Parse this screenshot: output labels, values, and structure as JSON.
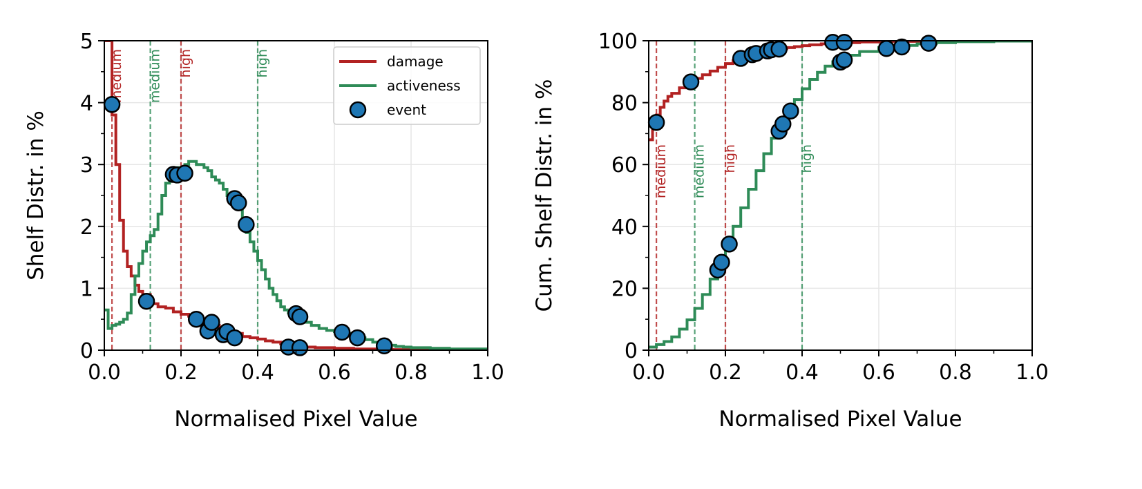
{
  "colors": {
    "damage": "#b22222",
    "activeness": "#2e8b57",
    "event_fill": "#1f77b4",
    "event_edge": "#000000",
    "grid": "#e6e6e6",
    "axes": "#000000"
  },
  "chart_data": [
    {
      "type": "line",
      "subtype": "step",
      "xlabel": "Normalised Pixel Value",
      "ylabel": "Shelf Distr. in %",
      "xlim": [
        0,
        1
      ],
      "ylim": [
        0,
        5
      ],
      "xticks": [
        0.0,
        0.2,
        0.4,
        0.6,
        0.8,
        1.0
      ],
      "xtick_labels": [
        "0.0",
        "0.2",
        "0.4",
        "0.6",
        "0.8",
        "1.0"
      ],
      "yticks": [
        0,
        1,
        2,
        3,
        4,
        5
      ],
      "ytick_labels": [
        "0",
        "1",
        "2",
        "3",
        "4",
        "5"
      ],
      "grid": true,
      "legend": {
        "position": "top-right",
        "entries": [
          {
            "label": "damage",
            "kind": "line",
            "series": "damage"
          },
          {
            "label": "activeness",
            "kind": "line",
            "series": "activeness"
          },
          {
            "label": "event",
            "kind": "marker"
          }
        ]
      },
      "thresholds": [
        {
          "x": 0.02,
          "label": "medium",
          "series": "damage",
          "label_pos": "top"
        },
        {
          "x": 0.12,
          "label": "medium",
          "series": "activeness",
          "label_pos": "top"
        },
        {
          "x": 0.2,
          "label": "high",
          "series": "damage",
          "label_pos": "top"
        },
        {
          "x": 0.4,
          "label": "high",
          "series": "activeness",
          "label_pos": "top"
        }
      ],
      "series": [
        {
          "name": "damage",
          "x": [
            0.0,
            0.01,
            0.02,
            0.03,
            0.04,
            0.05,
            0.06,
            0.07,
            0.08,
            0.09,
            0.1,
            0.12,
            0.14,
            0.16,
            0.18,
            0.2,
            0.22,
            0.24,
            0.26,
            0.28,
            0.3,
            0.32,
            0.34,
            0.36,
            0.38,
            0.4,
            0.42,
            0.44,
            0.46,
            0.48,
            0.5,
            0.52,
            0.55,
            0.6,
            0.65,
            0.7,
            0.75,
            0.8,
            0.85,
            0.9,
            0.95,
            1.0
          ],
          "y": [
            5.0,
            5.0,
            3.8,
            3.0,
            2.1,
            1.6,
            1.35,
            1.2,
            1.05,
            0.95,
            0.9,
            0.75,
            0.7,
            0.68,
            0.62,
            0.58,
            0.55,
            0.5,
            0.45,
            0.4,
            0.35,
            0.3,
            0.27,
            0.22,
            0.2,
            0.18,
            0.15,
            0.13,
            0.1,
            0.08,
            0.06,
            0.05,
            0.04,
            0.03,
            0.02,
            0.02,
            0.01,
            0.01,
            0.01,
            0.0,
            0.0,
            0.0
          ]
        },
        {
          "name": "activeness",
          "x": [
            0.0,
            0.01,
            0.02,
            0.03,
            0.04,
            0.05,
            0.06,
            0.07,
            0.08,
            0.09,
            0.1,
            0.11,
            0.12,
            0.13,
            0.14,
            0.15,
            0.16,
            0.17,
            0.18,
            0.19,
            0.2,
            0.21,
            0.22,
            0.23,
            0.24,
            0.25,
            0.26,
            0.27,
            0.28,
            0.29,
            0.3,
            0.31,
            0.32,
            0.33,
            0.34,
            0.35,
            0.36,
            0.37,
            0.38,
            0.39,
            0.4,
            0.41,
            0.42,
            0.43,
            0.44,
            0.45,
            0.46,
            0.47,
            0.48,
            0.49,
            0.5,
            0.52,
            0.54,
            0.56,
            0.58,
            0.6,
            0.62,
            0.64,
            0.66,
            0.68,
            0.7,
            0.72,
            0.74,
            0.76,
            0.78,
            0.8,
            0.85,
            0.9,
            0.95,
            1.0
          ],
          "y": [
            0.65,
            0.35,
            0.4,
            0.42,
            0.45,
            0.5,
            0.6,
            0.9,
            1.2,
            1.4,
            1.6,
            1.75,
            1.85,
            1.95,
            2.2,
            2.5,
            2.7,
            2.85,
            2.9,
            2.95,
            2.95,
            3.0,
            3.05,
            3.05,
            3.0,
            3.0,
            2.95,
            2.9,
            2.8,
            2.75,
            2.7,
            2.6,
            2.5,
            2.45,
            2.4,
            2.3,
            2.1,
            1.9,
            1.75,
            1.6,
            1.45,
            1.3,
            1.15,
            1.0,
            0.9,
            0.8,
            0.7,
            0.65,
            0.6,
            0.55,
            0.5,
            0.45,
            0.4,
            0.35,
            0.32,
            0.3,
            0.27,
            0.24,
            0.2,
            0.17,
            0.13,
            0.1,
            0.08,
            0.06,
            0.05,
            0.04,
            0.03,
            0.02,
            0.02,
            0.01
          ]
        }
      ],
      "events": [
        {
          "x": 0.02,
          "y": 3.97
        },
        {
          "x": 0.11,
          "y": 0.79
        },
        {
          "x": 0.18,
          "y": 2.84
        },
        {
          "x": 0.19,
          "y": 2.83
        },
        {
          "x": 0.21,
          "y": 2.86
        },
        {
          "x": 0.24,
          "y": 0.5
        },
        {
          "x": 0.27,
          "y": 0.31
        },
        {
          "x": 0.28,
          "y": 0.45
        },
        {
          "x": 0.31,
          "y": 0.25
        },
        {
          "x": 0.32,
          "y": 0.3
        },
        {
          "x": 0.34,
          "y": 2.45
        },
        {
          "x": 0.34,
          "y": 0.2
        },
        {
          "x": 0.35,
          "y": 2.38
        },
        {
          "x": 0.37,
          "y": 2.03
        },
        {
          "x": 0.48,
          "y": 0.05
        },
        {
          "x": 0.5,
          "y": 0.59
        },
        {
          "x": 0.51,
          "y": 0.54
        },
        {
          "x": 0.51,
          "y": 0.04
        },
        {
          "x": 0.62,
          "y": 0.29
        },
        {
          "x": 0.66,
          "y": 0.2
        },
        {
          "x": 0.73,
          "y": 0.07
        }
      ]
    },
    {
      "type": "line",
      "subtype": "step",
      "xlabel": "Normalised Pixel Value",
      "ylabel": "Cum. Shelf Distr. in %",
      "xlim": [
        0,
        1
      ],
      "ylim": [
        0,
        100
      ],
      "xticks": [
        0.0,
        0.2,
        0.4,
        0.6,
        0.8,
        1.0
      ],
      "xtick_labels": [
        "0.0",
        "0.2",
        "0.4",
        "0.6",
        "0.8",
        "1.0"
      ],
      "yticks": [
        0,
        20,
        40,
        60,
        80,
        100
      ],
      "ytick_labels": [
        "0",
        "20",
        "40",
        "60",
        "80",
        "100"
      ],
      "grid": true,
      "thresholds": [
        {
          "x": 0.02,
          "label": "medium",
          "series": "damage",
          "label_pos": "middle"
        },
        {
          "x": 0.12,
          "label": "medium",
          "series": "activeness",
          "label_pos": "middle"
        },
        {
          "x": 0.2,
          "label": "high",
          "series": "damage",
          "label_pos": "middle"
        },
        {
          "x": 0.4,
          "label": "high",
          "series": "activeness",
          "label_pos": "middle"
        }
      ],
      "series": [
        {
          "name": "damage",
          "x": [
            0.0,
            0.01,
            0.02,
            0.03,
            0.04,
            0.05,
            0.06,
            0.08,
            0.1,
            0.12,
            0.14,
            0.16,
            0.18,
            0.2,
            0.22,
            0.24,
            0.26,
            0.28,
            0.3,
            0.32,
            0.34,
            0.36,
            0.38,
            0.4,
            0.42,
            0.45,
            0.5,
            0.55,
            0.6,
            0.7,
            0.8,
            1.0
          ],
          "y": [
            68.0,
            72.0,
            76.0,
            78.5,
            80.5,
            82.0,
            83.0,
            84.8,
            86.3,
            87.8,
            89.0,
            90.2,
            91.4,
            92.6,
            93.6,
            94.5,
            95.2,
            95.9,
            96.5,
            97.0,
            97.4,
            97.8,
            98.1,
            98.4,
            98.7,
            99.0,
            99.4,
            99.6,
            99.8,
            99.9,
            100.0,
            100.0
          ]
        },
        {
          "name": "activeness",
          "x": [
            0.0,
            0.02,
            0.04,
            0.06,
            0.08,
            0.1,
            0.12,
            0.14,
            0.16,
            0.18,
            0.2,
            0.22,
            0.24,
            0.26,
            0.28,
            0.3,
            0.32,
            0.34,
            0.36,
            0.38,
            0.4,
            0.42,
            0.44,
            0.46,
            0.48,
            0.5,
            0.52,
            0.55,
            0.6,
            0.65,
            0.7,
            0.75,
            0.8,
            0.9,
            1.0
          ],
          "y": [
            1.0,
            1.8,
            2.8,
            4.3,
            6.8,
            9.8,
            13.5,
            18.0,
            23.0,
            28.0,
            34.0,
            40.0,
            46.0,
            52.0,
            58.0,
            63.5,
            68.5,
            72.8,
            77.0,
            81.0,
            84.5,
            87.5,
            89.8,
            91.8,
            93.2,
            94.4,
            95.3,
            96.5,
            97.8,
            98.5,
            99.0,
            99.4,
            99.7,
            99.9,
            100.0
          ]
        }
      ],
      "events": [
        {
          "x": 0.02,
          "y": 73.6
        },
        {
          "x": 0.11,
          "y": 86.7
        },
        {
          "x": 0.18,
          "y": 25.9
        },
        {
          "x": 0.19,
          "y": 28.4
        },
        {
          "x": 0.21,
          "y": 34.3
        },
        {
          "x": 0.24,
          "y": 94.3
        },
        {
          "x": 0.27,
          "y": 95.5
        },
        {
          "x": 0.28,
          "y": 95.9
        },
        {
          "x": 0.31,
          "y": 96.7
        },
        {
          "x": 0.32,
          "y": 97.1
        },
        {
          "x": 0.34,
          "y": 70.8
        },
        {
          "x": 0.34,
          "y": 97.3
        },
        {
          "x": 0.35,
          "y": 73.1
        },
        {
          "x": 0.37,
          "y": 77.3
        },
        {
          "x": 0.48,
          "y": 99.5
        },
        {
          "x": 0.5,
          "y": 93.1
        },
        {
          "x": 0.51,
          "y": 93.8
        },
        {
          "x": 0.51,
          "y": 99.5
        },
        {
          "x": 0.62,
          "y": 97.5
        },
        {
          "x": 0.66,
          "y": 98.0
        },
        {
          "x": 0.73,
          "y": 99.2
        }
      ]
    }
  ]
}
